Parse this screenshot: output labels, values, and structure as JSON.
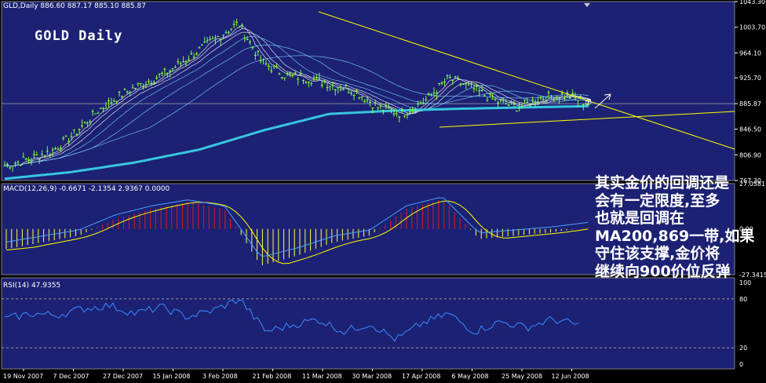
{
  "header": {
    "text": "GLD,Daily  886.60 887.17 885.10 885.87"
  },
  "title": "GOLD Daily",
  "macd_label": "MACD(12,26,9) -0.6671 -2.1354 2.9367 0.0000",
  "rsi_label": "RSI(14) 47.9355",
  "annotation_lines": [
    "其实金价的回调还是",
    "会有一定限度,至多",
    "也就是回调在",
    "MA200,869一带,如果",
    "守住该支撑,金价将",
    "继续向900价位反弹"
  ],
  "price_ticks": [
    "1043.30",
    "1003.70",
    "964.10",
    "925.70",
    "885.87",
    "846.50",
    "806.90",
    "767.30"
  ],
  "macd_ticks": [
    "27.0581",
    "0.00",
    "-27.3415"
  ],
  "rsi_ticks": [
    "100",
    "80",
    "20",
    "0"
  ],
  "x_ticks": [
    "19 Nov 2007",
    "7 Dec 2007",
    "27 Dec 2007",
    "15 Jan 2008",
    "3 Feb 2008",
    "21 Feb 2008",
    "11 Mar 2008",
    "30 Mar 2008",
    "17 Apr 2008",
    "6 May 2008",
    "25 May 2008",
    "12 Jun 2008"
  ],
  "colors": {
    "background": "#1c2173",
    "candle_up": "#7cff3f",
    "ma_fast": "#ffffff",
    "ma200": "#37c6e0",
    "trendline": "#ffff00",
    "macd_pos": "#e01818",
    "macd_neg": "#ffff40",
    "signal": "#ffff00",
    "macd_line": "#4aa0ff",
    "rsi_line": "#3a8cff"
  },
  "chart_data": [
    {
      "type": "candlestick",
      "name": "GLD Daily price",
      "title": "GOLD Daily",
      "ylim": [
        767.3,
        1043.3
      ],
      "x_labels": [
        "19 Nov 2007",
        "7 Dec 2007",
        "27 Dec 2007",
        "15 Jan 2008",
        "3 Feb 2008",
        "21 Feb 2008",
        "11 Mar 2008",
        "30 Mar 2008",
        "17 Apr 2008",
        "6 May 2008",
        "25 May 2008",
        "12 Jun 2008"
      ],
      "close_approx": [
        790,
        800,
        812,
        840,
        875,
        900,
        918,
        935,
        960,
        985,
        1010,
        950,
        930,
        925,
        915,
        905,
        880,
        870,
        890,
        925,
        910,
        890,
        880,
        895,
        900,
        886
      ],
      "last": {
        "open": 886.6,
        "high": 887.17,
        "low": 885.1,
        "close": 885.87
      },
      "ma200_approx": [
        770,
        780,
        795,
        815,
        845,
        870,
        875,
        878,
        880,
        882
      ]
    },
    {
      "type": "bar",
      "name": "MACD(12,26,9)",
      "ylim": [
        -27.3415,
        27.0581
      ],
      "values_approx": [
        -12,
        -8,
        -4,
        6,
        12,
        16,
        12,
        -22,
        -16,
        -8,
        -4,
        12,
        18,
        -6,
        -4,
        -2,
        1
      ],
      "current": {
        "macd": -0.6671,
        "signal": -2.1354,
        "hist": 2.9367
      }
    },
    {
      "type": "line",
      "name": "RSI(14)",
      "ylim": [
        0,
        100
      ],
      "levels": [
        20,
        80
      ],
      "values_approx": [
        55,
        62,
        60,
        68,
        72,
        62,
        70,
        58,
        66,
        80,
        40,
        48,
        55,
        40,
        50,
        30,
        50,
        62,
        40,
        52,
        45,
        55,
        48
      ],
      "current": 47.9355
    }
  ]
}
